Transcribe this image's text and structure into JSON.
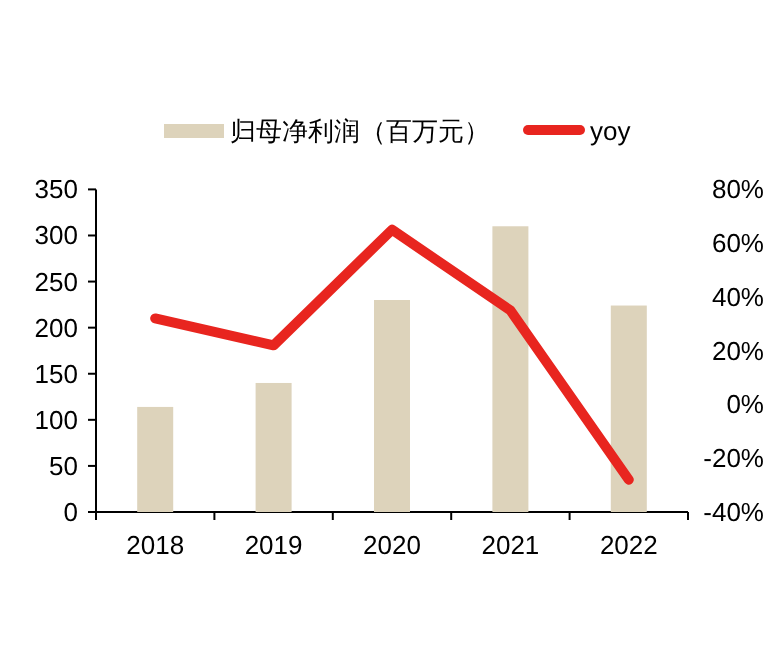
{
  "chart_data": {
    "type": "bar",
    "categories": [
      "2018",
      "2019",
      "2020",
      "2021",
      "2022"
    ],
    "series": [
      {
        "name": "归母净利润（百万元）",
        "color": "#ddd3bb",
        "values": [
          114,
          140,
          230,
          310,
          224
        ]
      },
      {
        "name": "yoy",
        "type": "line",
        "axis": "y2",
        "color": "#e8251f",
        "values": [
          32,
          22,
          65,
          35,
          -28
        ]
      }
    ],
    "ylim": [
      0,
      350
    ],
    "yticks": [
      0,
      50,
      100,
      150,
      200,
      250,
      300,
      350
    ],
    "y2lim": [
      -40,
      80
    ],
    "y2ticks": [
      {
        "value": -40,
        "label": "-40%"
      },
      {
        "value": -20,
        "label": "-20%"
      },
      {
        "value": 0,
        "label": "0%"
      },
      {
        "value": 20,
        "label": "20%"
      },
      {
        "value": 40,
        "label": "40%"
      },
      {
        "value": 60,
        "label": "60%"
      },
      {
        "value": 80,
        "label": "80%"
      }
    ],
    "legend": "top",
    "grid": false,
    "marker": "none"
  }
}
